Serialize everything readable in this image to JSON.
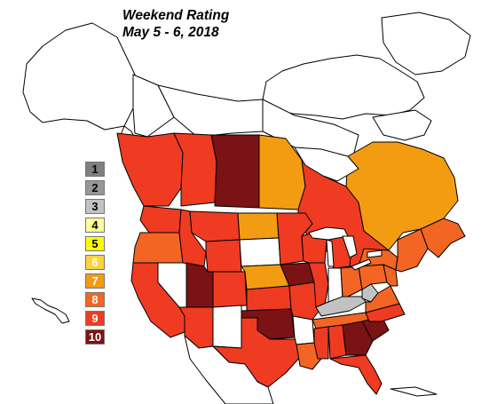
{
  "title": {
    "line1": "Weekend Rating",
    "line2": "May 5 - 6, 2018"
  },
  "legend": {
    "items": [
      {
        "label": "1",
        "color": "#7f7f7f",
        "text_color": "#000000"
      },
      {
        "label": "2",
        "color": "#979797",
        "text_color": "#000000"
      },
      {
        "label": "3",
        "color": "#c2c2c2",
        "text_color": "#000000"
      },
      {
        "label": "4",
        "color": "#ffff99",
        "text_color": "#000000"
      },
      {
        "label": "5",
        "color": "#ffff00",
        "text_color": "#000000"
      },
      {
        "label": "6",
        "color": "#ffd040",
        "text_color": "#ffffff"
      },
      {
        "label": "7",
        "color": "#f39c12",
        "text_color": "#ffffff"
      },
      {
        "label": "8",
        "color": "#f26522",
        "text_color": "#ffffff"
      },
      {
        "label": "9",
        "color": "#ee3b22",
        "text_color": "#ffffff"
      },
      {
        "label": "10",
        "color": "#7b1214",
        "text_color": "#ffffff"
      }
    ]
  },
  "regions": {
    "canada_north": "none",
    "alaska": "none",
    "yukon": "none",
    "nwt": "none",
    "nunavut": "none",
    "british_columbia": "9",
    "alberta": "9",
    "saskatchewan": "10",
    "manitoba": "7",
    "ontario": "9",
    "quebec": "7",
    "atlantic_canada": "8",
    "washington": "9",
    "oregon": "8",
    "california": "9",
    "nevada": "none",
    "idaho": "9",
    "montana": "9",
    "wyoming": "9",
    "utah": "10",
    "arizona": "9",
    "colorado": "9",
    "new_mexico": "none",
    "north_dakota": "7",
    "south_dakota": "none",
    "nebraska": "7",
    "kansas": "9",
    "oklahoma": "10",
    "texas": "9",
    "minnesota": "9",
    "iowa": "10",
    "missouri": "9",
    "arkansas": "none",
    "louisiana": "8",
    "wisconsin": "9",
    "illinois": "9",
    "michigan": "9",
    "indiana": "none",
    "ohio": "8",
    "kentucky": "3",
    "tennessee": "8",
    "mississippi": "9",
    "alabama": "9",
    "georgia": "10",
    "florida": "9",
    "south_carolina": "10",
    "north_carolina": "9",
    "virginia": "8",
    "west_virginia": "3",
    "pennsylvania": "8",
    "new_york": "8",
    "new_england": "8",
    "mexico": "none",
    "caribbean": "none"
  }
}
